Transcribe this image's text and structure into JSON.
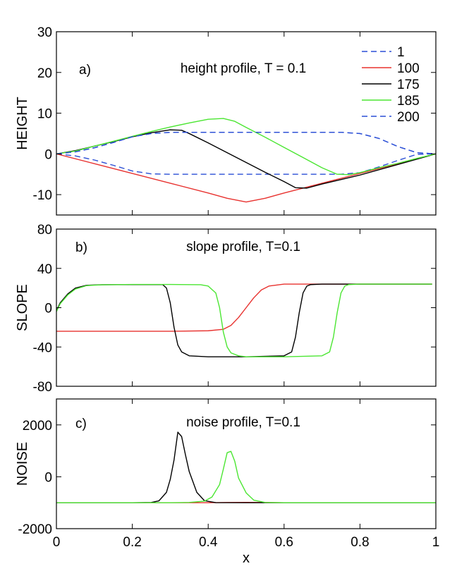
{
  "chart_data": [
    {
      "type": "line",
      "panel_label": "a)",
      "title": "height profile, T = 0.1",
      "ylabel": "HEIGHT",
      "xlabel": "",
      "xlim": [
        0,
        1
      ],
      "ylim": [
        -15,
        30
      ],
      "yticks": [
        -10,
        0,
        10,
        20,
        30
      ],
      "xticks": [
        0,
        0.2,
        0.4,
        0.6,
        0.8,
        1
      ],
      "show_xtick_labels": false,
      "grid": false,
      "legend_position": "top-right",
      "series": [
        {
          "name": "1",
          "color": "#2b4fd6",
          "dash": "dashed",
          "x": [
            0,
            0.05,
            0.1,
            0.15,
            0.2,
            0.25,
            0.3,
            0.35,
            0.4,
            0.5,
            0.6,
            0.7,
            0.75,
            0.8,
            0.85,
            0.9,
            0.95,
            1.0
          ],
          "y": [
            0,
            0.5,
            1.5,
            2.8,
            4.2,
            5.0,
            5.3,
            5.3,
            5.3,
            5.3,
            5.3,
            5.3,
            5.3,
            5.0,
            3.8,
            1.8,
            0.3,
            0
          ]
        },
        {
          "name": "",
          "color": "#2b4fd6",
          "dash": "dashed",
          "x": [
            0,
            0.05,
            0.1,
            0.15,
            0.2,
            0.25,
            0.3,
            0.35,
            0.4,
            0.5,
            0.6,
            0.7,
            0.75,
            0.8,
            0.85,
            0.9,
            0.95,
            1.0
          ],
          "y": [
            0,
            -0.5,
            -1.5,
            -2.8,
            -4.2,
            -4.9,
            -5.0,
            -5.0,
            -5.0,
            -5.0,
            -5.0,
            -5.0,
            -5.0,
            -4.6,
            -3.2,
            -1.6,
            -0.1,
            0
          ]
        },
        {
          "name": "100",
          "color": "#e8322f",
          "dash": "solid",
          "x": [
            0,
            0.1,
            0.2,
            0.3,
            0.4,
            0.45,
            0.5,
            0.55,
            0.6,
            0.7,
            0.8,
            0.9,
            1.0
          ],
          "y": [
            0,
            -2.4,
            -4.8,
            -7.2,
            -9.6,
            -10.9,
            -11.8,
            -10.9,
            -9.6,
            -7.2,
            -4.8,
            -2.4,
            0
          ]
        },
        {
          "name": "175",
          "color": "#000000",
          "dash": "solid",
          "x": [
            0,
            0.05,
            0.1,
            0.15,
            0.2,
            0.25,
            0.3,
            0.33,
            0.35,
            0.4,
            0.45,
            0.5,
            0.55,
            0.6,
            0.63,
            0.66,
            0.7,
            0.8,
            0.9,
            1.0
          ],
          "y": [
            0,
            0.8,
            1.9,
            3.0,
            4.2,
            5.2,
            5.9,
            5.8,
            5.0,
            2.7,
            0.3,
            -2.1,
            -4.5,
            -6.8,
            -8.3,
            -8.4,
            -7.4,
            -5.2,
            -2.6,
            0
          ]
        },
        {
          "name": "185",
          "color": "#4be632",
          "dash": "solid",
          "x": [
            0,
            0.05,
            0.1,
            0.15,
            0.2,
            0.25,
            0.3,
            0.35,
            0.4,
            0.44,
            0.47,
            0.5,
            0.55,
            0.6,
            0.65,
            0.7,
            0.74,
            0.77,
            0.8,
            0.85,
            0.9,
            0.95,
            1.0
          ],
          "y": [
            0,
            0.7,
            1.9,
            3.1,
            4.3,
            5.5,
            6.6,
            7.6,
            8.5,
            8.7,
            8.0,
            6.5,
            4.1,
            1.6,
            -0.9,
            -3.4,
            -5.0,
            -5.1,
            -4.6,
            -3.4,
            -2.3,
            -1.1,
            0
          ]
        },
        {
          "name": "200",
          "color": "#2b4fd6",
          "dash": "dashed",
          "x": [
            0,
            0.05,
            0.1,
            0.15,
            0.2,
            0.25,
            0.3,
            0.35,
            0.4,
            0.5,
            0.6,
            0.7,
            0.75,
            0.8,
            0.85,
            0.9,
            0.95,
            1.0
          ],
          "y": [
            0,
            0.5,
            1.5,
            2.8,
            4.2,
            5.0,
            5.3,
            5.3,
            5.3,
            5.3,
            5.3,
            5.3,
            5.3,
            5.0,
            3.8,
            1.8,
            0.3,
            0
          ]
        }
      ]
    },
    {
      "type": "line",
      "panel_label": "b)",
      "title": "slope profile, T=0.1",
      "ylabel": "SLOPE",
      "xlabel": "",
      "xlim": [
        0,
        1
      ],
      "ylim": [
        -80,
        80
      ],
      "yticks": [
        -80,
        -40,
        0,
        40,
        80
      ],
      "xticks": [
        0,
        0.2,
        0.4,
        0.6,
        0.8,
        1
      ],
      "show_xtick_labels": false,
      "grid": false,
      "series": [
        {
          "name": "100",
          "color": "#e8322f",
          "dash": "solid",
          "x": [
            0,
            0.1,
            0.2,
            0.3,
            0.4,
            0.44,
            0.46,
            0.48,
            0.5,
            0.52,
            0.54,
            0.56,
            0.6,
            0.7,
            0.8,
            0.9,
            0.99
          ],
          "y": [
            -24,
            -24,
            -24,
            -24,
            -23.5,
            -22,
            -18,
            -10,
            0,
            10,
            18,
            22,
            24,
            24,
            24,
            24,
            24
          ]
        },
        {
          "name": "175",
          "color": "#000000",
          "dash": "solid",
          "x": [
            0,
            0.01,
            0.03,
            0.05,
            0.08,
            0.12,
            0.2,
            0.28,
            0.29,
            0.3,
            0.31,
            0.32,
            0.33,
            0.35,
            0.4,
            0.5,
            0.6,
            0.62,
            0.63,
            0.64,
            0.65,
            0.66,
            0.67,
            0.7,
            0.8,
            0.9,
            0.99
          ],
          "y": [
            -3,
            5,
            14,
            20,
            22.8,
            23.4,
            23.5,
            23.5,
            20,
            5,
            -20,
            -38,
            -45,
            -49,
            -50,
            -50,
            -49,
            -45,
            -30,
            -5,
            15,
            22,
            23.5,
            24,
            24,
            24,
            24
          ]
        },
        {
          "name": "185",
          "color": "#4be632",
          "dash": "solid",
          "x": [
            0,
            0.01,
            0.03,
            0.05,
            0.08,
            0.12,
            0.2,
            0.3,
            0.38,
            0.4,
            0.42,
            0.43,
            0.44,
            0.45,
            0.46,
            0.48,
            0.5,
            0.6,
            0.7,
            0.72,
            0.73,
            0.74,
            0.75,
            0.76,
            0.77,
            0.8,
            0.9,
            0.99
          ],
          "y": [
            -4,
            4,
            13,
            19,
            22.5,
            23.3,
            23.6,
            23.6,
            23.4,
            22,
            15,
            0,
            -25,
            -40,
            -46,
            -49,
            -50,
            -50,
            -49,
            -45,
            -30,
            -5,
            15,
            22,
            23.5,
            24,
            24,
            24
          ]
        }
      ]
    },
    {
      "type": "line",
      "panel_label": "c)",
      "title": "noise profile, T=0.1",
      "ylabel": "NOISE",
      "xlabel": "x",
      "xlim": [
        0,
        1
      ],
      "ylim": [
        -2000,
        3000
      ],
      "yticks": [
        -2000,
        0,
        2000
      ],
      "xticks": [
        0,
        0.2,
        0.4,
        0.6,
        0.8,
        1
      ],
      "xtick_labels": [
        "0",
        "0.2",
        "0.4",
        "0.6",
        "0.8",
        "1"
      ],
      "show_xtick_labels": true,
      "grid": false,
      "series": [
        {
          "name": "100",
          "color": "#e8322f",
          "dash": "solid",
          "x": [
            0,
            0.4,
            0.45,
            0.5,
            0.55,
            0.6,
            1.0
          ],
          "y": [
            -1000,
            -1000,
            -990,
            -985,
            -990,
            -1000,
            -1000
          ]
        },
        {
          "name": "175",
          "color": "#000000",
          "dash": "solid",
          "x": [
            0,
            0.2,
            0.25,
            0.27,
            0.29,
            0.3,
            0.31,
            0.32,
            0.33,
            0.34,
            0.35,
            0.37,
            0.39,
            0.42,
            0.5,
            0.6,
            1.0
          ],
          "y": [
            -1000,
            -1000,
            -990,
            -930,
            -600,
            -100,
            650,
            1720,
            1550,
            850,
            200,
            -600,
            -920,
            -995,
            -1000,
            -1000,
            -1000
          ]
        },
        {
          "name": "185",
          "color": "#4be632",
          "dash": "solid",
          "x": [
            0,
            0.3,
            0.35,
            0.39,
            0.41,
            0.43,
            0.44,
            0.45,
            0.46,
            0.47,
            0.48,
            0.5,
            0.52,
            0.55,
            0.6,
            1.0
          ],
          "y": [
            -1000,
            -1000,
            -990,
            -940,
            -780,
            -300,
            300,
            930,
            980,
            600,
            -50,
            -620,
            -900,
            -990,
            -1000,
            -1000
          ]
        }
      ]
    }
  ]
}
